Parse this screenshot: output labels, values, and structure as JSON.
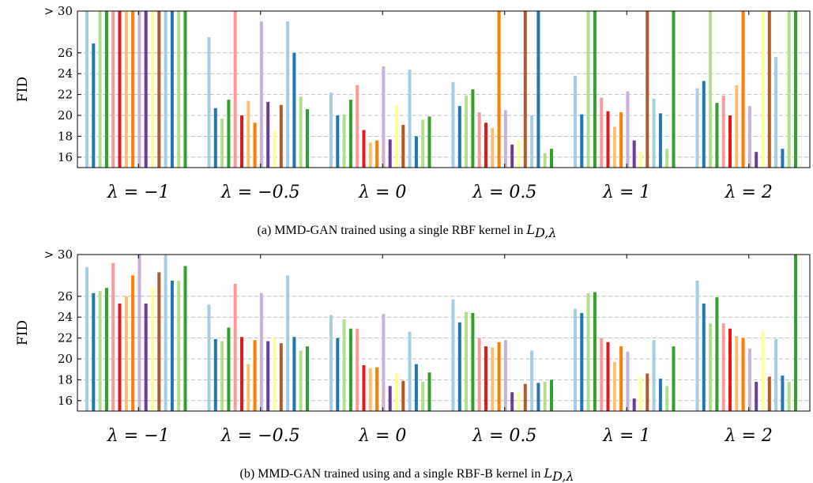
{
  "palette": [
    "#a6cee3",
    "#1f78b4",
    "#b2df8a",
    "#33a02c",
    "#fb9a99",
    "#e31a1c",
    "#fdbf6f",
    "#ff7f00",
    "#cab2d6",
    "#6a3d9a",
    "#ffff99",
    "#b15928",
    "#a6cee3",
    "#1f78b4",
    "#b2df8a",
    "#33a02c"
  ],
  "chart_data": [
    {
      "type": "bar",
      "ylabel": "FID",
      "ylim": [
        15,
        30
      ],
      "yticks": [
        16,
        18,
        20,
        22,
        24,
        26
      ],
      "top_tick_label": "> 30",
      "grid": "horizontal dashed",
      "categories": [
        "λ = −1",
        "λ = −0.5",
        "λ = 0",
        "λ = 0.5",
        "λ = 1",
        "λ = 2"
      ],
      "caption_text": "(a) MMD-GAN trained using a single RBF kernel in ",
      "caption_math": "L",
      "caption_sub": "D,λ",
      "groups": [
        [
          30,
          26.9,
          30,
          30,
          30,
          30,
          30,
          30,
          30,
          30,
          30,
          30,
          30,
          30,
          30,
          30
        ],
        [
          27.5,
          20.7,
          19.7,
          21.5,
          30,
          20.0,
          21.4,
          19.3,
          29.0,
          21.3,
          18.5,
          21.0,
          29.0,
          26.0,
          21.8,
          20.6
        ],
        [
          22.2,
          20.0,
          20.1,
          21.5,
          22.9,
          18.6,
          17.4,
          17.6,
          24.7,
          17.7,
          21.0,
          19.1,
          24.4,
          18.0,
          19.6,
          19.9
        ],
        [
          23.2,
          20.9,
          21.9,
          22.5,
          20.3,
          19.3,
          18.8,
          30,
          20.5,
          17.2,
          17.6,
          30,
          20.0,
          30,
          16.4,
          16.8
        ],
        [
          23.8,
          20.1,
          30,
          30,
          21.7,
          20.4,
          18.9,
          20.3,
          22.3,
          17.6,
          16.5,
          30,
          21.6,
          20.2,
          16.8,
          30
        ],
        [
          22.6,
          23.3,
          30,
          21.2,
          21.9,
          20.0,
          22.9,
          30,
          20.9,
          16.5,
          30,
          30,
          25.6,
          16.8,
          30,
          30
        ]
      ]
    },
    {
      "type": "bar",
      "ylabel": "FID",
      "ylim": [
        15,
        30
      ],
      "yticks": [
        16,
        18,
        20,
        22,
        24,
        26
      ],
      "top_tick_label": "> 30",
      "grid": "horizontal dashed",
      "categories": [
        "λ = −1",
        "λ = −0.5",
        "λ = 0",
        "λ = 0.5",
        "λ = 1",
        "λ = 2"
      ],
      "caption_text": "(b) MMD-GAN trained using and a single RBF-B kernel in ",
      "caption_math": "L",
      "caption_sub": "D,λ",
      "groups": [
        [
          28.8,
          26.3,
          26.5,
          26.8,
          29.2,
          25.3,
          26.0,
          28.0,
          30,
          25.3,
          26.8,
          28.3,
          30,
          27.5,
          27.5,
          28.9
        ],
        [
          25.2,
          21.9,
          21.7,
          23.0,
          27.2,
          22.1,
          19.5,
          21.8,
          26.3,
          21.7,
          22.0,
          21.5,
          28.0,
          22.1,
          20.8,
          21.2
        ],
        [
          24.2,
          22.0,
          23.8,
          22.9,
          22.9,
          19.4,
          19.1,
          19.2,
          24.3,
          17.4,
          18.6,
          17.9,
          22.6,
          19.5,
          17.8,
          18.7
        ],
        [
          25.7,
          23.5,
          24.5,
          24.4,
          22.0,
          21.2,
          21.1,
          21.6,
          21.8,
          16.8,
          16.8,
          17.6,
          20.8,
          17.7,
          17.8,
          18.0
        ],
        [
          24.8,
          24.4,
          26.3,
          26.4,
          22.0,
          21.6,
          19.7,
          21.2,
          20.7,
          16.2,
          18.2,
          18.6,
          21.8,
          18.1,
          17.4,
          21.2
        ],
        [
          27.5,
          25.3,
          23.4,
          25.9,
          23.4,
          22.9,
          22.2,
          22.0,
          21.0,
          17.8,
          22.7,
          18.3,
          21.9,
          18.4,
          17.8,
          30
        ]
      ]
    }
  ]
}
